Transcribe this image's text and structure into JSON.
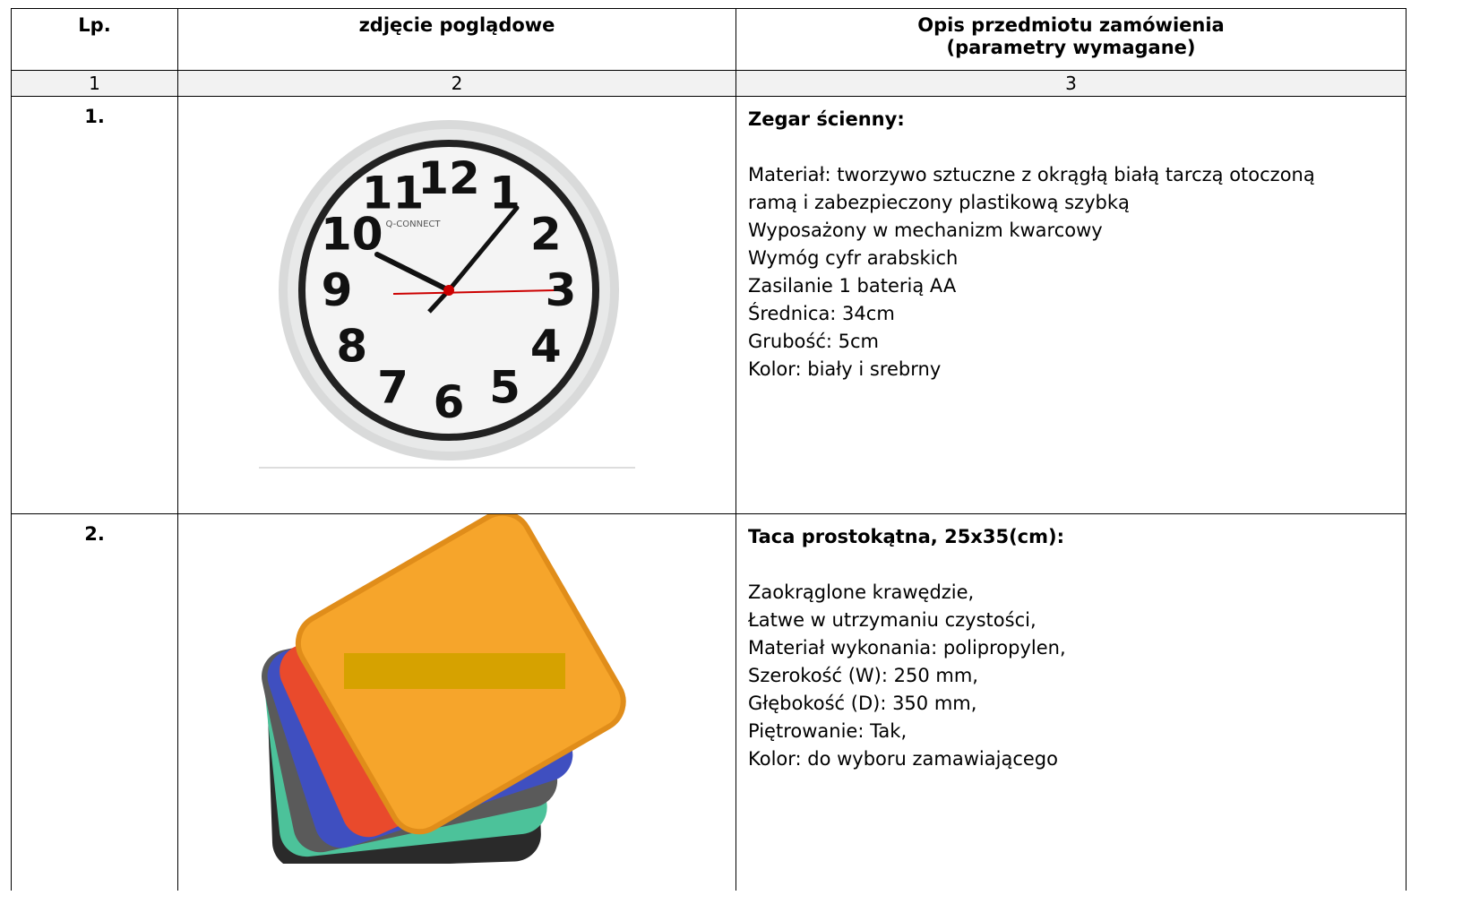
{
  "header": {
    "lp": "Lp.",
    "photo": "zdjęcie poglądowe",
    "description": [
      "Opis przedmiotu zamówienia",
      "(parametry wymagane)"
    ]
  },
  "column_numbers": [
    "1",
    "2",
    "3"
  ],
  "rows": [
    {
      "number": "1.",
      "title": "Zegar ścienny:",
      "image": {
        "brand": "Q-CONNECT",
        "numerals": [
          "1",
          "2",
          "3",
          "4",
          "5",
          "6",
          "7",
          "8",
          "9",
          "10",
          "11",
          "12"
        ]
      },
      "lines": [
        "Materiał: tworzywo sztuczne z okrągłą białą tarczą otoczoną",
        "ramą i zabezpieczony plastikową szybką",
        "Wyposażony w mechanizm kwarcowy",
        "Wymóg cyfr arabskich",
        "Zasilanie 1 baterią AA",
        "Średnica: 34cm",
        "Grubość: 5cm",
        "Kolor: biały i srebrny"
      ]
    },
    {
      "number": "2.",
      "title": "Taca prostokątna, 25x35(cm):",
      "lines": [
        "Zaokrąglone krawędzie,",
        "Łatwe w utrzymaniu czystości,",
        "Materiał wykonania: polipropylen,",
        "Szerokość (W): 250 mm,",
        "Głębokość (D): 350 mm,",
        "Piętrowanie: Tak,",
        "Kolor: do wyboru zamawiającego"
      ]
    }
  ]
}
